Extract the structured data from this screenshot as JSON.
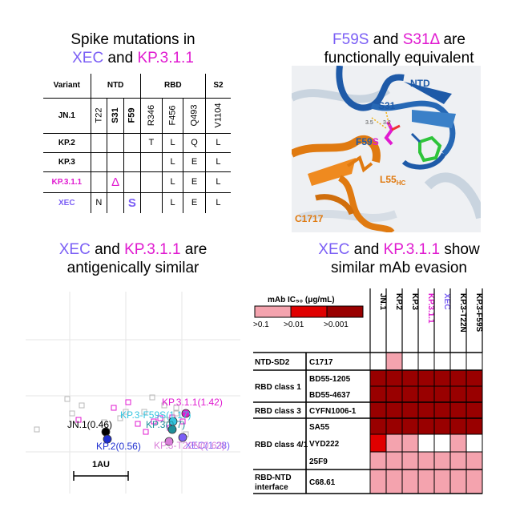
{
  "panel_a": {
    "title_line1": "Spike mutations in",
    "title_xec": "XEC",
    "title_and": "and",
    "title_kp": "KP.3.1.1",
    "headers": {
      "variant": "Variant",
      "ntd": "NTD",
      "rbd": "RBD",
      "s2": "S2"
    },
    "positions": [
      "T22",
      "S31",
      "F59",
      "R346",
      "F456",
      "Q493",
      "V1104"
    ],
    "rows": [
      {
        "name": "KP.2",
        "cells": [
          "",
          "",
          "",
          "T",
          "L",
          "Q",
          "L"
        ]
      },
      {
        "name": "KP.3",
        "cells": [
          "",
          "",
          "",
          "",
          "L",
          "E",
          "L"
        ]
      },
      {
        "name": "KP.3.1.1",
        "cells": [
          "",
          "Δ",
          "",
          "",
          "L",
          "E",
          "L"
        ]
      },
      {
        "name": "XEC",
        "cells": [
          "N",
          "",
          "S",
          "",
          "L",
          "E",
          "L"
        ]
      }
    ],
    "jn1_label": "JN.1",
    "colors": {
      "xec": "#7b5ff5",
      "kp": "#e01ad0"
    }
  },
  "panel_b": {
    "title_f59s": "F59S",
    "title_and": "and",
    "title_s31": "S31Δ",
    "title_are": "are",
    "title_line2": "functionally equivalent",
    "labels": {
      "ntd": "NTD",
      "s31": "S31",
      "f59": "F59",
      "f59_s": "S",
      "l55": "L55",
      "l55_sub": "HC",
      "c1717": "C1717",
      "d1": "3.5",
      "d2": "3.2"
    }
  },
  "panel_c": {
    "title_xec": "XEC",
    "title_and": "and",
    "title_kp": "KP.3.1.1",
    "title_are": "are",
    "title_line2": "antigenically similar",
    "scale_label": "1AU",
    "points": [
      {
        "label": "KP.3.1.1(1.42)",
        "color": "#e01ad0"
      },
      {
        "label": "KP.3-F59S(1.17)",
        "color": "#35c5e0"
      },
      {
        "label": "JN.1(0.46)",
        "color": "#000000"
      },
      {
        "label": "KP.3(0.7)",
        "color": "#1f8f9a"
      },
      {
        "label": "XEC(1.28)",
        "color": "#7b5ff5"
      },
      {
        "label": "KP.2(0.56)",
        "color": "#2030d0"
      },
      {
        "label": "KP.3-T22N(0.63)",
        "color": "#d97ed8"
      }
    ]
  },
  "panel_d": {
    "title_xec": "XEC",
    "title_and": "and",
    "title_kp": "KP.3.1.1",
    "title_show": "show",
    "title_line2": "similar mAb evasion",
    "legend_title": "mAb IC₅₀ (μg/mL)",
    "legend_ticks": [
      ">0.1",
      ">0.01",
      ">0.001"
    ],
    "legend_colors": [
      "#f4a3ae",
      "#e00000",
      "#990000"
    ],
    "columns": [
      "JN.1",
      "KP.2",
      "KP.3",
      "KP.3.1.1",
      "XEC",
      "KP.3-T22N",
      "KP.3-F59S"
    ],
    "column_colors": [
      "#000000",
      "#000000",
      "#000000",
      "#e01ad0",
      "#7b5ff5",
      "#000000",
      "#000000"
    ],
    "groups": [
      {
        "name": "NTD-SD2",
        "mabs": [
          "C1717"
        ]
      },
      {
        "name": "RBD class 1",
        "mabs": [
          "BD55-1205",
          "BD55-4637"
        ]
      },
      {
        "name": "RBD class 3",
        "mabs": [
          "CYFN1006-1"
        ]
      },
      {
        "name": "RBD class 4/1",
        "mabs": [
          "SA55",
          "VYD222",
          "25F9"
        ]
      },
      {
        "name": "RBD-NTD interface",
        "mabs": [
          "C68.61"
        ]
      }
    ],
    "chart_data": {
      "type": "heatmap",
      "rows": [
        "C1717",
        "BD55-1205",
        "BD55-4637",
        "CYFN1006-1",
        "SA55",
        "VYD222",
        "25F9",
        "C68.61"
      ],
      "columns": [
        "JN.1",
        "KP.2",
        "KP.3",
        "KP.3.1.1",
        "XEC",
        "KP.3-T22N",
        "KP.3-F59S"
      ],
      "levels": [
        [
          0,
          1,
          0,
          0,
          0,
          0,
          0
        ],
        [
          3,
          3,
          3,
          3,
          3,
          3,
          3
        ],
        [
          3,
          3,
          3,
          3,
          3,
          3,
          3
        ],
        [
          3,
          3,
          3,
          3,
          3,
          3,
          3
        ],
        [
          3,
          3,
          3,
          3,
          3,
          3,
          3
        ],
        [
          2,
          1,
          1,
          0,
          0,
          1,
          0
        ],
        [
          1,
          1,
          1,
          1,
          1,
          1,
          1
        ],
        [
          1,
          1,
          1,
          1,
          1,
          1,
          1
        ]
      ],
      "level_colors": [
        "#ffffff",
        "#f4a3ae",
        "#e00000",
        "#990000"
      ]
    }
  }
}
